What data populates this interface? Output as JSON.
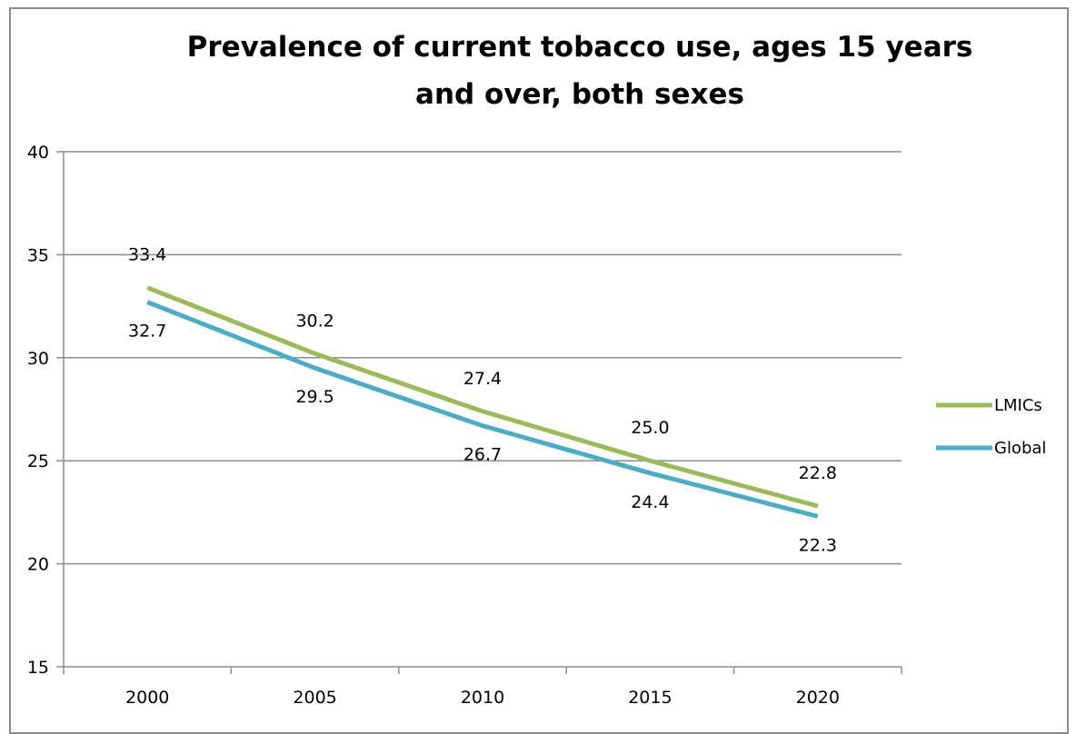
{
  "chart_data": {
    "type": "line",
    "title_lines": [
      "Prevalence of current tobacco use, ages 15 years",
      "and over, both sexes"
    ],
    "categories": [
      "2000",
      "2005",
      "2010",
      "2015",
      "2020"
    ],
    "y_ticks": [
      "15",
      "20",
      "25",
      "30",
      "35",
      "40"
    ],
    "ylim": [
      15,
      40
    ],
    "grid": true,
    "legend_position": "right",
    "series": [
      {
        "name": "LMICs",
        "color": "#9bbb59",
        "values": [
          33.4,
          30.2,
          27.4,
          25.0,
          22.8
        ],
        "labels": [
          "33.4",
          "30.2",
          "27.4",
          "25.0",
          "22.8"
        ]
      },
      {
        "name": "Global",
        "color": "#4bacc6",
        "values": [
          32.7,
          29.5,
          26.7,
          24.4,
          22.3
        ],
        "labels": [
          "32.7",
          "29.5",
          "26.7",
          "24.4",
          "22.3"
        ]
      }
    ]
  }
}
